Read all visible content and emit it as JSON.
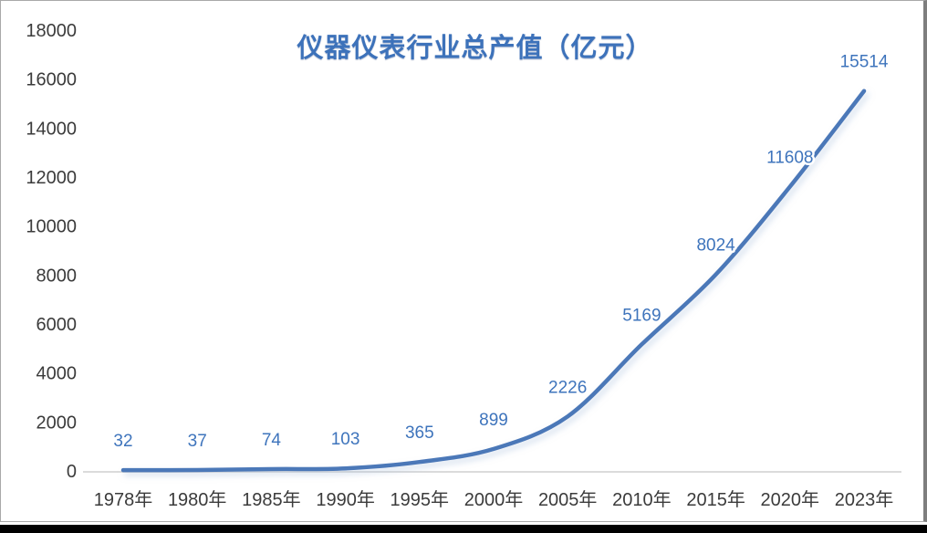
{
  "chart_data": {
    "type": "line",
    "title": "仪器仪表行业总产值（亿元）",
    "categories": [
      "1978年",
      "1980年",
      "1985年",
      "1990年",
      "1995年",
      "2000年",
      "2005年",
      "2010年",
      "2015年",
      "2020年",
      "2023年"
    ],
    "values": [
      32,
      37,
      74,
      103,
      365,
      899,
      2226,
      5169,
      8024,
      11608,
      15514
    ],
    "data_labels": [
      "32",
      "37",
      "74",
      "103",
      "365",
      "899",
      "2226",
      "5169",
      "8024",
      "11608",
      "15514"
    ],
    "yticks": [
      0,
      2000,
      4000,
      6000,
      8000,
      10000,
      12000,
      14000,
      16000,
      18000
    ],
    "ylim": [
      0,
      18000
    ],
    "xlabel": "",
    "ylabel": "",
    "grid": "off",
    "legend": "none",
    "line_color": "#4c78b8",
    "data_label_color": "#3e74bc",
    "title_color": "#3d72ba",
    "tick_color": "#3b3b3b",
    "axis_color": "#dbdbdb"
  }
}
